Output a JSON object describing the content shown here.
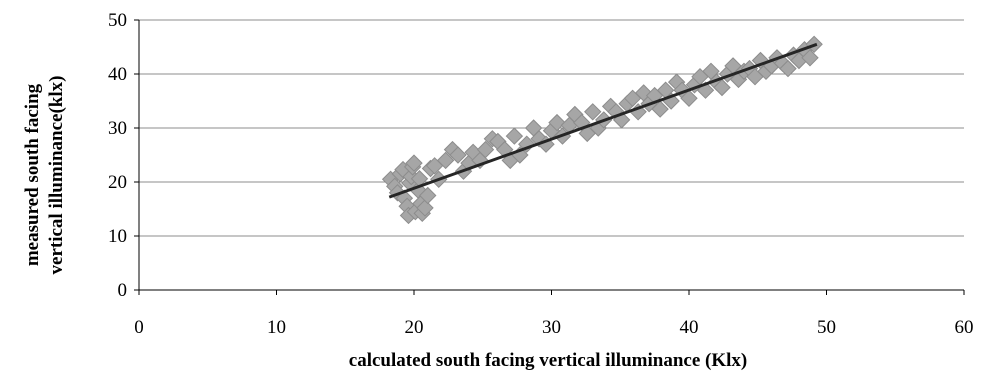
{
  "chart_data": {
    "type": "scatter",
    "title": "",
    "xlabel": "calculated south facing vertical illuminance (Klx)",
    "ylabel": [
      "measured south facing",
      "vertical illuminance(klx)"
    ],
    "xlim": [
      0,
      60
    ],
    "ylim": [
      0,
      50
    ],
    "xticks": [
      "0",
      "10",
      "20",
      "30",
      "40",
      "50",
      "60"
    ],
    "yticks": [
      "0",
      "10",
      "20",
      "30",
      "40",
      "50"
    ],
    "grid": "horizontal",
    "legend": "none",
    "colors": {
      "marker": "#a6a6a6",
      "marker_edge": "#8c8c8c",
      "trendline": "#262626",
      "grid": "#8c8c8c",
      "axis": "#000000"
    },
    "series": [
      {
        "marker": "diamond",
        "points": [
          [
            18.3,
            20.5
          ],
          [
            18.6,
            19.2
          ],
          [
            18.8,
            18.0
          ],
          [
            19.0,
            21.5
          ],
          [
            19.2,
            22.3
          ],
          [
            19.3,
            17.0
          ],
          [
            19.5,
            15.5
          ],
          [
            19.6,
            13.8
          ],
          [
            19.7,
            19.8
          ],
          [
            19.8,
            21.0
          ],
          [
            19.9,
            22.8
          ],
          [
            20.0,
            23.5
          ],
          [
            20.1,
            14.5
          ],
          [
            20.3,
            18.5
          ],
          [
            20.4,
            20.6
          ],
          [
            20.5,
            16.0
          ],
          [
            20.6,
            14.2
          ],
          [
            20.8,
            15.2
          ],
          [
            21.0,
            17.5
          ],
          [
            21.2,
            22.5
          ],
          [
            21.5,
            23.0
          ],
          [
            21.8,
            20.5
          ],
          [
            22.3,
            24.0
          ],
          [
            22.8,
            26.0
          ],
          [
            23.2,
            25.0
          ],
          [
            23.6,
            22.0
          ],
          [
            24.0,
            23.5
          ],
          [
            24.3,
            25.5
          ],
          [
            24.8,
            24.0
          ],
          [
            25.2,
            26.0
          ],
          [
            25.7,
            28.0
          ],
          [
            26.1,
            27.5
          ],
          [
            26.6,
            26.0
          ],
          [
            27.0,
            24.0
          ],
          [
            27.3,
            28.5
          ],
          [
            27.7,
            25.0
          ],
          [
            28.2,
            27.0
          ],
          [
            28.7,
            30.0
          ],
          [
            29.1,
            28.0
          ],
          [
            29.6,
            27.0
          ],
          [
            30.0,
            29.5
          ],
          [
            30.4,
            31.0
          ],
          [
            30.8,
            28.5
          ],
          [
            31.3,
            30.5
          ],
          [
            31.7,
            32.5
          ],
          [
            32.2,
            31.0
          ],
          [
            32.6,
            29.0
          ],
          [
            33.0,
            33.0
          ],
          [
            33.4,
            30.0
          ],
          [
            33.8,
            31.5
          ],
          [
            34.3,
            34.0
          ],
          [
            34.7,
            33.0
          ],
          [
            35.1,
            31.5
          ],
          [
            35.5,
            34.5
          ],
          [
            35.9,
            35.5
          ],
          [
            36.3,
            33.0
          ],
          [
            36.7,
            36.5
          ],
          [
            37.1,
            34.5
          ],
          [
            37.5,
            36.0
          ],
          [
            37.9,
            33.5
          ],
          [
            38.3,
            37.0
          ],
          [
            38.7,
            35.0
          ],
          [
            39.1,
            38.5
          ],
          [
            39.5,
            37.0
          ],
          [
            40.0,
            35.5
          ],
          [
            40.4,
            38.0
          ],
          [
            40.8,
            39.5
          ],
          [
            41.2,
            37.0
          ],
          [
            41.6,
            40.5
          ],
          [
            42.0,
            38.5
          ],
          [
            42.4,
            37.5
          ],
          [
            42.8,
            40.0
          ],
          [
            43.2,
            41.5
          ],
          [
            43.6,
            39.0
          ],
          [
            44.0,
            40.5
          ],
          [
            44.4,
            41.0
          ],
          [
            44.8,
            39.5
          ],
          [
            45.2,
            42.5
          ],
          [
            45.6,
            40.5
          ],
          [
            46.0,
            41.5
          ],
          [
            46.4,
            43.0
          ],
          [
            46.8,
            42.0
          ],
          [
            47.2,
            41.0
          ],
          [
            47.6,
            43.5
          ],
          [
            48.0,
            42.5
          ],
          [
            48.4,
            44.5
          ],
          [
            48.8,
            43.0
          ],
          [
            49.1,
            45.5
          ]
        ]
      }
    ],
    "trendline": {
      "type": "linear",
      "x": [
        18.2,
        49.3
      ],
      "y": [
        17.2,
        45.5
      ]
    }
  }
}
